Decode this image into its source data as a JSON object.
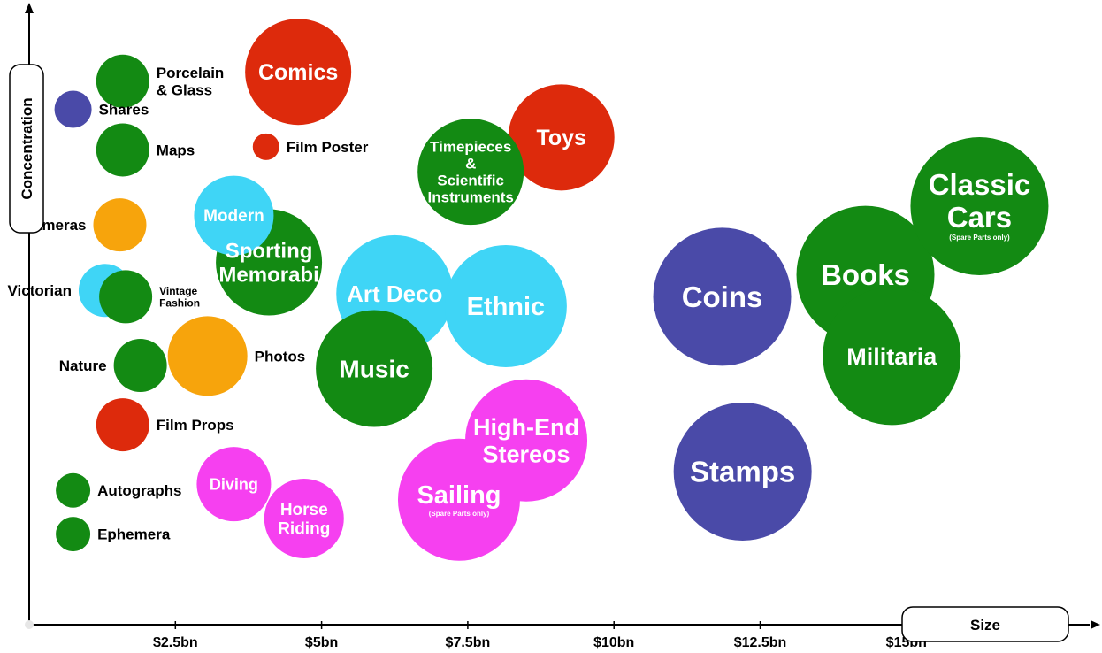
{
  "chart_data": {
    "type": "scatter",
    "xlabel": "Size",
    "ylabel": "Concentration",
    "x_ticks": [
      "$2.5bn",
      "$5bn",
      "$7.5bn",
      "$10bn",
      "$12.5bn",
      "$15bn"
    ],
    "x_tick_values": [
      2.5,
      5,
      7.5,
      10,
      12.5,
      15
    ],
    "xlim": [
      0,
      18.3
    ],
    "y_ticks_shown": false,
    "grid": false,
    "legend": "none",
    "colors": {
      "green": "#138a13",
      "red": "#dd2a0c",
      "blue": "#4a4aa8",
      "orange": "#f7a40c",
      "cyan": "#3fd5f6",
      "magenta": "#f640f0"
    },
    "bubbles": [
      {
        "name": "Porcelain\n& Glass",
        "x": 1.6,
        "y": 0.87,
        "r": 1.0,
        "color": "green",
        "label_pos": "right"
      },
      {
        "name": "Shares",
        "x": 0.75,
        "y": 0.825,
        "r": 0.7,
        "color": "blue",
        "label_pos": "right"
      },
      {
        "name": "Maps",
        "x": 1.6,
        "y": 0.76,
        "r": 1.0,
        "color": "green",
        "label_pos": "right"
      },
      {
        "name": "Film Poster",
        "x": 4.05,
        "y": 0.765,
        "r": 0.5,
        "color": "red",
        "label_pos": "right"
      },
      {
        "name": "Cameras",
        "x": 1.55,
        "y": 0.64,
        "r": 1.0,
        "color": "orange",
        "label_pos": "left"
      },
      {
        "name": "Victorian",
        "x": 1.3,
        "y": 0.535,
        "r": 1.0,
        "color": "cyan",
        "label_pos": "left"
      },
      {
        "name": "Vintage\nFashion",
        "x": 1.65,
        "y": 0.525,
        "r": 1.0,
        "color": "green",
        "label_pos": "right",
        "label_size": "small"
      },
      {
        "name": "Nature",
        "x": 1.9,
        "y": 0.415,
        "r": 1.0,
        "color": "green",
        "label_pos": "left"
      },
      {
        "name": "Film Props",
        "x": 1.6,
        "y": 0.32,
        "r": 1.0,
        "color": "red",
        "label_pos": "right"
      },
      {
        "name": "Autographs",
        "x": 0.75,
        "y": 0.215,
        "r": 0.65,
        "color": "green",
        "label_pos": "right"
      },
      {
        "name": "Ephemera",
        "x": 0.75,
        "y": 0.145,
        "r": 0.65,
        "color": "green",
        "label_pos": "right"
      },
      {
        "name": "Photos",
        "x": 3.05,
        "y": 0.43,
        "r": 1.5,
        "color": "orange",
        "label_pos": "right"
      },
      {
        "name": "Comics",
        "x": 4.6,
        "y": 0.885,
        "r": 2.0,
        "color": "red",
        "label_pos": "inside"
      },
      {
        "name": "Sporting\nMemorabi",
        "x": 4.1,
        "y": 0.58,
        "r": 2.0,
        "color": "green",
        "label_pos": "inside"
      },
      {
        "name": "Modern",
        "x": 3.5,
        "y": 0.655,
        "r": 1.5,
        "color": "cyan",
        "label_pos": "inside"
      },
      {
        "name": "Diving",
        "x": 3.5,
        "y": 0.225,
        "r": 1.4,
        "color": "magenta",
        "label_pos": "inside"
      },
      {
        "name": "Horse\nRiding",
        "x": 4.7,
        "y": 0.17,
        "r": 1.5,
        "color": "magenta",
        "label_pos": "inside"
      },
      {
        "name": "Art Deco",
        "x": 6.25,
        "y": 0.53,
        "r": 2.2,
        "color": "cyan",
        "label_pos": "inside"
      },
      {
        "name": "Music",
        "x": 5.9,
        "y": 0.41,
        "r": 2.2,
        "color": "green",
        "label_pos": "inside"
      },
      {
        "name": "Toys",
        "x": 9.1,
        "y": 0.78,
        "r": 2.0,
        "color": "red",
        "label_pos": "inside"
      },
      {
        "name": "Timepieces\n&\nScientific\nInstruments",
        "x": 7.55,
        "y": 0.725,
        "r": 2.0,
        "color": "green",
        "label_pos": "inside"
      },
      {
        "name": "Ethnic",
        "x": 8.15,
        "y": 0.51,
        "r": 2.3,
        "color": "cyan",
        "label_pos": "inside"
      },
      {
        "name": "High-End\nStereos",
        "x": 8.5,
        "y": 0.295,
        "r": 2.3,
        "color": "magenta",
        "label_pos": "inside"
      },
      {
        "name": "Sailing",
        "note": "(Spare Parts only)",
        "x": 7.35,
        "y": 0.2,
        "r": 2.3,
        "color": "magenta",
        "label_pos": "inside"
      },
      {
        "name": "Coins",
        "x": 11.85,
        "y": 0.525,
        "r": 2.6,
        "color": "blue",
        "label_pos": "inside"
      },
      {
        "name": "Stamps",
        "x": 12.2,
        "y": 0.245,
        "r": 2.6,
        "color": "blue",
        "label_pos": "inside"
      },
      {
        "name": "Books",
        "x": 14.3,
        "y": 0.56,
        "r": 2.6,
        "color": "green",
        "label_pos": "inside"
      },
      {
        "name": "Militaria",
        "x": 14.75,
        "y": 0.43,
        "r": 2.6,
        "color": "green",
        "label_pos": "inside"
      },
      {
        "name": "Classic\nCars",
        "note": "(Spare Parts only)",
        "x": 16.25,
        "y": 0.67,
        "r": 2.6,
        "color": "green",
        "label_pos": "inside"
      }
    ]
  }
}
